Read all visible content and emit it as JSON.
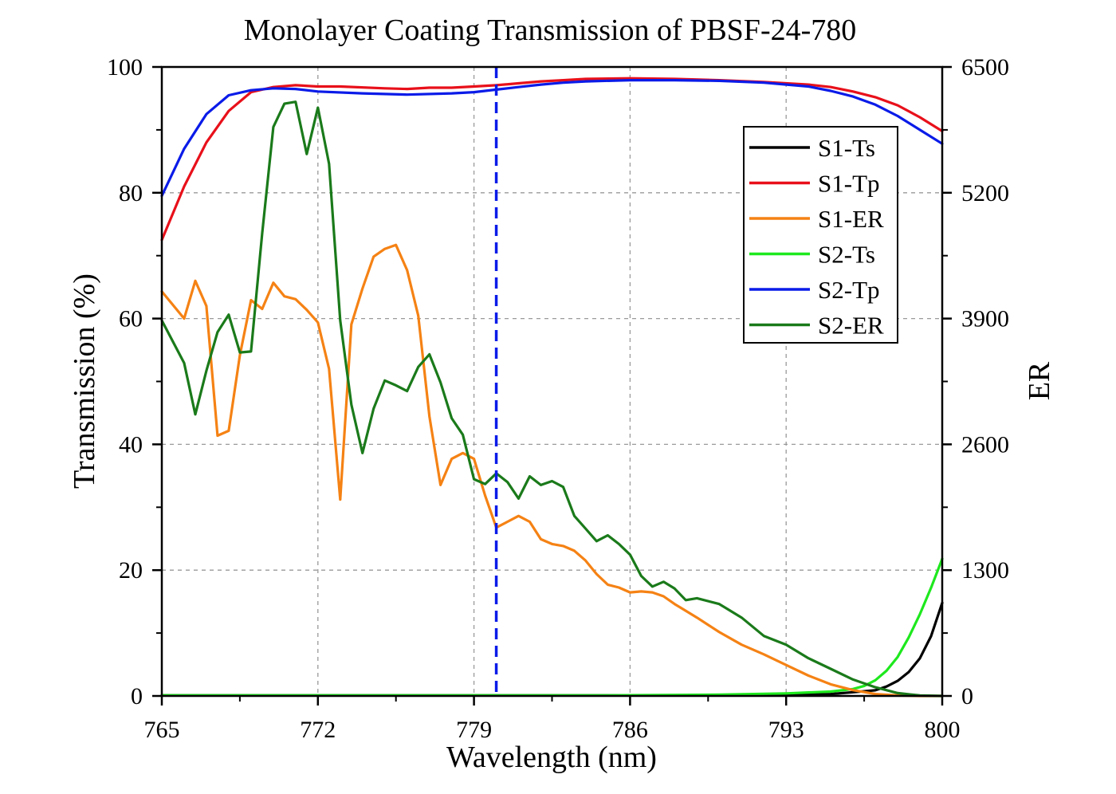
{
  "chart_data": {
    "type": "line",
    "title": "Monolayer Coating Transmission of PBSF-24-780",
    "xlabel": "Wavelength (nm)",
    "ylabel": "Transmission (%)",
    "y2label": "ER",
    "xlim": [
      765,
      800
    ],
    "ylim": [
      0,
      100
    ],
    "y2lim": [
      0,
      6500
    ],
    "xticks": [
      "765",
      "772",
      "779",
      "786",
      "793",
      "800"
    ],
    "yticks": [
      "0",
      "20",
      "40",
      "60",
      "80",
      "100"
    ],
    "y2ticks": [
      "0",
      "1300",
      "2600",
      "3900",
      "5200",
      "6500"
    ],
    "grid": true,
    "legend_position": "top-right",
    "marker_line": {
      "x": 780,
      "color": "#0a1be8",
      "style": "dashed"
    },
    "series": [
      {
        "name": "S1-Ts",
        "color": "#000000",
        "axis": "left",
        "x": [
          765,
          770,
          775,
          780,
          785,
          790,
          794,
          795,
          796,
          797,
          797.5,
          798,
          798.5,
          799,
          799.5,
          800
        ],
        "y": [
          0.1,
          0.1,
          0.1,
          0.1,
          0.1,
          0.1,
          0.2,
          0.3,
          0.6,
          0.9,
          1.5,
          2.4,
          3.8,
          6.0,
          9.5,
          14.8
        ]
      },
      {
        "name": "S1-Tp",
        "color": "#e8101a",
        "axis": "left",
        "x": [
          765,
          766,
          767,
          768,
          769,
          770,
          771,
          772,
          773,
          775,
          776,
          777,
          778,
          779,
          780,
          781,
          782,
          783,
          784,
          786,
          788,
          790,
          792,
          794,
          795,
          796,
          797,
          798,
          799,
          800
        ],
        "y": [
          72.5,
          81,
          88,
          93,
          96,
          96.8,
          97.1,
          96.9,
          96.9,
          96.6,
          96.5,
          96.7,
          96.7,
          96.9,
          97.1,
          97.4,
          97.7,
          97.9,
          98.1,
          98.2,
          98.1,
          97.9,
          97.6,
          97.2,
          96.8,
          96.1,
          95.2,
          93.9,
          92.0,
          89.8
        ]
      },
      {
        "name": "S1-ER",
        "color": "#f58214",
        "axis": "right",
        "x": [
          765,
          766,
          766.5,
          767,
          767.5,
          768,
          768.5,
          769,
          769.5,
          770,
          770.5,
          771,
          771.5,
          772,
          772.5,
          773,
          773.5,
          774,
          774.5,
          775,
          775.5,
          776,
          776.5,
          777,
          777.5,
          778,
          778.5,
          779,
          779.5,
          780,
          780.5,
          781,
          781.5,
          782,
          782.5,
          783,
          783.5,
          784,
          784.5,
          785,
          785.5,
          786,
          786.5,
          787,
          787.5,
          788,
          789,
          790,
          791,
          792,
          793,
          794,
          795,
          796,
          797,
          798,
          799,
          800
        ],
        "y": [
          4180,
          3900,
          4290,
          4030,
          2690,
          2740,
          3520,
          4090,
          4000,
          4270,
          4130,
          4100,
          3990,
          3860,
          3380,
          2030,
          3840,
          4210,
          4540,
          4620,
          4660,
          4400,
          3930,
          2890,
          2180,
          2450,
          2510,
          2450,
          2070,
          1740,
          1800,
          1860,
          1800,
          1620,
          1570,
          1550,
          1500,
          1400,
          1260,
          1150,
          1120,
          1070,
          1080,
          1070,
          1030,
          950,
          810,
          660,
          530,
          430,
          320,
          210,
          120,
          60,
          20,
          5,
          0,
          0
        ]
      },
      {
        "name": "S2-Ts",
        "color": "#1ee81e",
        "axis": "left",
        "x": [
          765,
          770,
          775,
          780,
          785,
          790,
          793,
          795,
          796,
          796.5,
          797,
          797.5,
          798,
          798.5,
          799,
          799.5,
          800
        ],
        "y": [
          0.1,
          0.1,
          0.1,
          0.1,
          0.1,
          0.2,
          0.4,
          0.7,
          1.1,
          1.6,
          2.5,
          4.0,
          6.2,
          9.3,
          13.0,
          17.2,
          21.8
        ]
      },
      {
        "name": "S2-Tp",
        "color": "#0a1be8",
        "axis": "left",
        "x": [
          765,
          766,
          767,
          768,
          769,
          770,
          771,
          772,
          774,
          776,
          778,
          779,
          780,
          781,
          782,
          783,
          784,
          786,
          788,
          790,
          792,
          794,
          795,
          796,
          797,
          798,
          799,
          800
        ],
        "y": [
          79.5,
          87,
          92.5,
          95.5,
          96.3,
          96.6,
          96.5,
          96.1,
          95.8,
          95.6,
          95.8,
          96.0,
          96.4,
          96.8,
          97.2,
          97.5,
          97.7,
          97.9,
          97.9,
          97.8,
          97.5,
          96.9,
          96.2,
          95.3,
          94.0,
          92.2,
          90.0,
          87.8
        ]
      },
      {
        "name": "S2-ER",
        "color": "#1a7a1a",
        "axis": "right",
        "x": [
          765,
          766,
          766.5,
          767,
          767.5,
          768,
          768.5,
          769,
          769.5,
          770,
          770.5,
          771,
          771.5,
          772,
          772.5,
          773,
          773.5,
          774,
          774.5,
          775,
          775.5,
          776,
          776.5,
          777,
          777.5,
          778,
          778.5,
          779,
          779.5,
          780,
          780.5,
          781,
          781.5,
          782,
          782.5,
          783,
          783.5,
          784,
          784.5,
          785,
          785.5,
          786,
          786.5,
          787,
          787.5,
          788,
          788.5,
          789,
          790,
          791,
          792,
          793,
          794,
          795,
          796,
          797,
          798,
          799,
          800
        ],
        "y": [
          3880,
          3440,
          2910,
          3360,
          3760,
          3940,
          3550,
          3560,
          4780,
          5880,
          6120,
          6140,
          5600,
          6080,
          5500,
          3880,
          3010,
          2510,
          2970,
          3260,
          3210,
          3150,
          3400,
          3530,
          3240,
          2870,
          2700,
          2240,
          2190,
          2300,
          2210,
          2040,
          2270,
          2180,
          2220,
          2160,
          1860,
          1730,
          1600,
          1660,
          1570,
          1460,
          1240,
          1130,
          1180,
          1110,
          990,
          1010,
          950,
          810,
          620,
          530,
          390,
          280,
          170,
          90,
          30,
          5,
          0
        ]
      }
    ]
  }
}
